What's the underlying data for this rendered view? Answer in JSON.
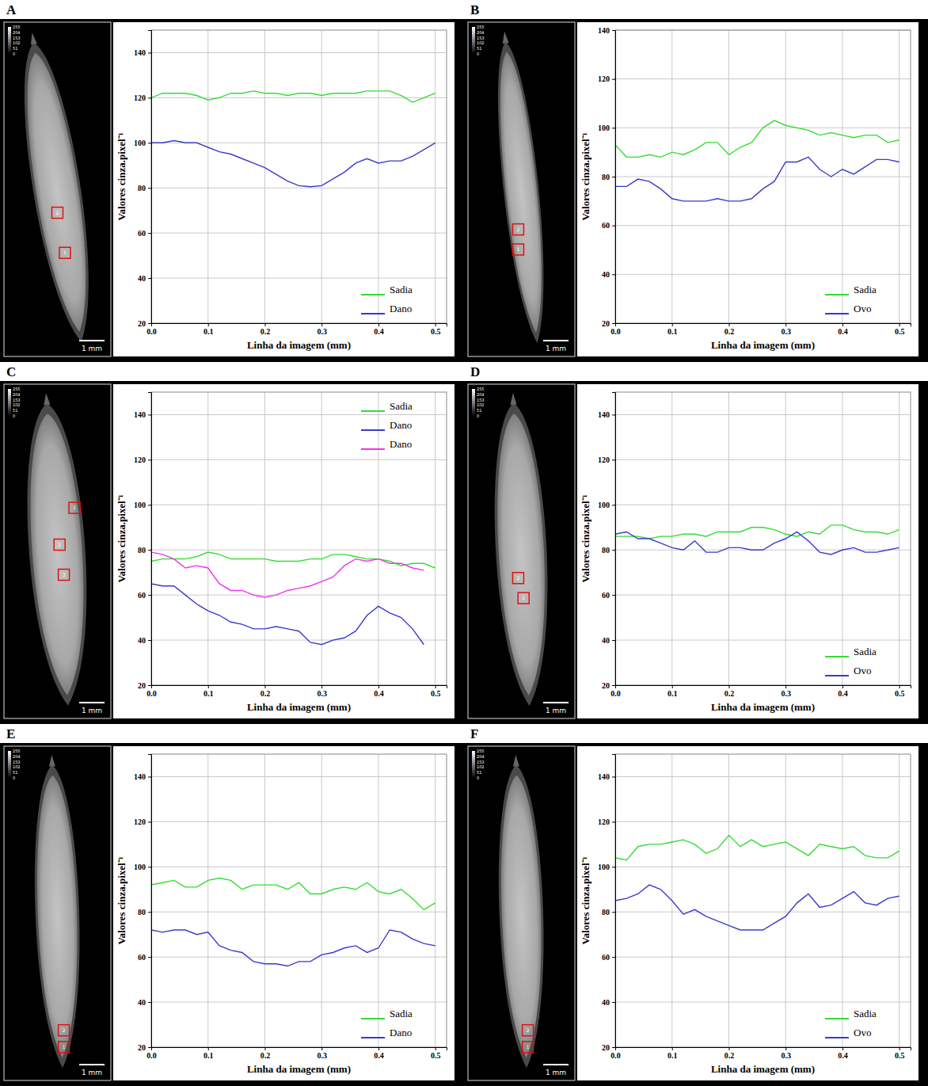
{
  "chart_data": [
    {
      "panel": "A",
      "type": "line",
      "x_label": "Linha da imagem (mm)",
      "y_label": "Valores cinza.pixel⁻¹",
      "x": [
        0,
        0.02,
        0.04,
        0.06,
        0.08,
        0.1,
        0.12,
        0.14,
        0.16,
        0.18,
        0.2,
        0.22,
        0.24,
        0.26,
        0.28,
        0.3,
        0.32,
        0.34,
        0.36,
        0.38,
        0.4,
        0.42,
        0.44,
        0.46,
        0.48,
        0.5
      ],
      "xlim": [
        0,
        0.52
      ],
      "xticks": [
        {
          "value": 0,
          "label": "0.0"
        },
        0.1,
        0.2,
        0.3,
        0.4,
        0.5
      ],
      "ylim": [
        20,
        150
      ],
      "yticks": [
        20,
        40,
        60,
        80,
        100,
        120,
        140
      ],
      "grid": true,
      "legend": "lower right",
      "series": [
        {
          "name": "Sadia",
          "color": "#33dd33",
          "values": [
            120,
            122,
            122,
            122,
            121,
            119,
            120,
            122,
            122,
            123,
            122,
            122,
            121,
            122,
            122,
            121,
            122,
            122,
            122,
            123,
            123,
            123,
            121,
            118,
            120,
            122
          ]
        },
        {
          "name": "Dano",
          "color": "#3a3acc",
          "values": [
            100,
            100,
            101,
            100,
            100,
            98,
            96,
            95,
            93,
            91,
            89,
            86,
            83,
            81,
            80.5,
            81,
            84,
            87,
            91,
            93,
            91,
            92,
            92,
            94,
            97,
            100
          ]
        }
      ],
      "image": {
        "colorbar_ticks": [
          255,
          204,
          153,
          102,
          51,
          0
        ],
        "scale_bar": "1 mm",
        "boxes": [
          "2",
          "1"
        ]
      }
    },
    {
      "panel": "B",
      "type": "line",
      "x_label": "Linha da imagem (mm)",
      "y_label": "Valores cinza.pixel⁻¹",
      "x": [
        0,
        0.02,
        0.04,
        0.06,
        0.08,
        0.1,
        0.12,
        0.14,
        0.16,
        0.18,
        0.2,
        0.22,
        0.24,
        0.26,
        0.28,
        0.3,
        0.32,
        0.34,
        0.36,
        0.38,
        0.4,
        0.42,
        0.44,
        0.46,
        0.48,
        0.5
      ],
      "xlim": [
        0,
        0.52
      ],
      "xticks": [
        {
          "value": 0,
          "label": "0.0"
        },
        0.1,
        0.2,
        0.3,
        0.4,
        0.5
      ],
      "ylim": [
        20,
        140
      ],
      "yticks": [
        20,
        40,
        60,
        80,
        100,
        120,
        140
      ],
      "grid": true,
      "legend": "lower right",
      "series": [
        {
          "name": "Sadia",
          "color": "#33dd33",
          "values": [
            93,
            88,
            88,
            89,
            88,
            90,
            89,
            91,
            94,
            94,
            89,
            92,
            94,
            100,
            103,
            101,
            100,
            99,
            97,
            98,
            97,
            96,
            97,
            97,
            94,
            95
          ]
        },
        {
          "name": "Ovo",
          "color": "#3a3acc",
          "values": [
            76,
            76,
            79,
            78,
            75,
            71,
            70,
            70,
            70,
            71,
            70,
            70,
            71,
            75,
            78,
            86,
            86,
            88,
            83,
            80,
            83,
            81,
            84,
            87,
            87,
            86
          ]
        }
      ],
      "image": {
        "colorbar_ticks": [
          255,
          204,
          153,
          102,
          51,
          0
        ],
        "scale_bar": "1 mm",
        "boxes": [
          "2",
          "1"
        ]
      }
    },
    {
      "panel": "C",
      "type": "line",
      "x_label": "Linha da imagem (mm)",
      "y_label": "Valores cinza.pixel⁻¹",
      "x": [
        0,
        0.02,
        0.04,
        0.06,
        0.08,
        0.1,
        0.12,
        0.14,
        0.16,
        0.18,
        0.2,
        0.22,
        0.24,
        0.26,
        0.28,
        0.3,
        0.32,
        0.34,
        0.36,
        0.38,
        0.4,
        0.42,
        0.44,
        0.46,
        0.48,
        0.5
      ],
      "xlim": [
        0,
        0.52
      ],
      "xticks": [
        {
          "value": 0,
          "label": "0.0"
        },
        0.1,
        0.2,
        0.3,
        0.4,
        0.5
      ],
      "ylim": [
        20,
        150
      ],
      "yticks": [
        20,
        40,
        60,
        80,
        100,
        120,
        140
      ],
      "grid": true,
      "legend": "upper right",
      "series": [
        {
          "name": "Sadia",
          "color": "#33dd33",
          "values": [
            75,
            76,
            76,
            76,
            77,
            79,
            78,
            76,
            76,
            76,
            76,
            75,
            75,
            75,
            76,
            76,
            78,
            78,
            77,
            76,
            76,
            75,
            73,
            74,
            74,
            72
          ]
        },
        {
          "name": "Dano",
          "color": "#3a3acc",
          "values": [
            65,
            64,
            64,
            60,
            56,
            53,
            51,
            48,
            47,
            45,
            45,
            46,
            45,
            44,
            39,
            38,
            40,
            41,
            44,
            51,
            55,
            52,
            50,
            45,
            38,
            null
          ]
        },
        {
          "name": "Dano",
          "color": "#ee33ee",
          "values": [
            79,
            78,
            76,
            72,
            73,
            72,
            65,
            62,
            62,
            60,
            59,
            60,
            62,
            63,
            64,
            66,
            68,
            73,
            76,
            75,
            76,
            74,
            74,
            72,
            71,
            null
          ]
        }
      ],
      "image": {
        "colorbar_ticks": [
          255,
          204,
          153,
          102,
          51,
          0
        ],
        "scale_bar": "1 mm",
        "boxes": [
          "1",
          "2",
          "3"
        ]
      }
    },
    {
      "panel": "D",
      "type": "line",
      "x_label": "Linha da imagem (mm)",
      "y_label": "Valores cinza.pixel⁻¹",
      "x": [
        0,
        0.02,
        0.04,
        0.06,
        0.08,
        0.1,
        0.12,
        0.14,
        0.16,
        0.18,
        0.2,
        0.22,
        0.24,
        0.26,
        0.28,
        0.3,
        0.32,
        0.34,
        0.36,
        0.38,
        0.4,
        0.42,
        0.44,
        0.46,
        0.48,
        0.5
      ],
      "xlim": [
        0,
        0.52
      ],
      "xticks": [
        {
          "value": 0,
          "label": "0.0"
        },
        0.1,
        0.2,
        0.3,
        0.4,
        0.5
      ],
      "ylim": [
        20,
        150
      ],
      "yticks": [
        20,
        40,
        60,
        80,
        100,
        120,
        140
      ],
      "grid": true,
      "legend": "lower right",
      "series": [
        {
          "name": "Sadia",
          "color": "#33dd33",
          "values": [
            86,
            86,
            86,
            85,
            86,
            86,
            87,
            87,
            86,
            88,
            88,
            88,
            90,
            90,
            89,
            87,
            86,
            88,
            87,
            91,
            91,
            89,
            88,
            88,
            87,
            89
          ]
        },
        {
          "name": "Ovo",
          "color": "#3a3acc",
          "values": [
            87,
            88,
            85,
            85,
            83,
            81,
            80,
            84,
            79,
            79,
            81,
            81,
            80,
            80,
            83,
            85,
            88,
            84,
            79,
            78,
            80,
            81,
            79,
            79,
            80,
            81
          ]
        }
      ],
      "image": {
        "colorbar_ticks": [
          255,
          204,
          153,
          102,
          51,
          0
        ],
        "scale_bar": "1 mm",
        "boxes": [
          "2",
          "1"
        ]
      }
    },
    {
      "panel": "E",
      "type": "line",
      "x_label": "Linha da imagem (mm)",
      "y_label": "Valores cinza.pixel⁻¹",
      "x": [
        0,
        0.02,
        0.04,
        0.06,
        0.08,
        0.1,
        0.12,
        0.14,
        0.16,
        0.18,
        0.2,
        0.22,
        0.24,
        0.26,
        0.28,
        0.3,
        0.32,
        0.34,
        0.36,
        0.38,
        0.4,
        0.42,
        0.44,
        0.46,
        0.48,
        0.5
      ],
      "xlim": [
        0,
        0.52
      ],
      "xticks": [
        {
          "value": 0,
          "label": "0.0"
        },
        0.1,
        0.2,
        0.3,
        0.4,
        0.5
      ],
      "ylim": [
        20,
        150
      ],
      "yticks": [
        20,
        40,
        60,
        80,
        100,
        120,
        140
      ],
      "grid": true,
      "legend": "lower right",
      "series": [
        {
          "name": "Sadia",
          "color": "#33dd33",
          "values": [
            92,
            93,
            94,
            91,
            91,
            94,
            95,
            94,
            90,
            92,
            92,
            92,
            90,
            93,
            88,
            88,
            90,
            91,
            90,
            93,
            89,
            88,
            90,
            86,
            81,
            84
          ]
        },
        {
          "name": "Dano",
          "color": "#3a3acc",
          "values": [
            72,
            71,
            72,
            72,
            70,
            71,
            65,
            63,
            62,
            58,
            57,
            57,
            56,
            58,
            58,
            61,
            62,
            64,
            65,
            62,
            64,
            72,
            71,
            68,
            66,
            65
          ]
        }
      ],
      "image": {
        "colorbar_ticks": [
          255,
          204,
          153,
          102,
          51,
          0
        ],
        "scale_bar": "1 mm",
        "boxes": [
          "2",
          "1"
        ]
      }
    },
    {
      "panel": "F",
      "type": "line",
      "x_label": "Linha da imagem (mm)",
      "y_label": "Valores cinza.pixel⁻¹",
      "x": [
        0,
        0.02,
        0.04,
        0.06,
        0.08,
        0.1,
        0.12,
        0.14,
        0.16,
        0.18,
        0.2,
        0.22,
        0.24,
        0.26,
        0.28,
        0.3,
        0.32,
        0.34,
        0.36,
        0.38,
        0.4,
        0.42,
        0.44,
        0.46,
        0.48,
        0.5
      ],
      "xlim": [
        0,
        0.52
      ],
      "xticks": [
        {
          "value": 0,
          "label": "0.0"
        },
        0.1,
        0.2,
        0.3,
        0.4,
        0.5
      ],
      "ylim": [
        20,
        150
      ],
      "yticks": [
        20,
        40,
        60,
        80,
        100,
        120,
        140
      ],
      "grid": true,
      "legend": "lower right",
      "series": [
        {
          "name": "Sadia",
          "color": "#33dd33",
          "values": [
            104,
            103,
            109,
            110,
            110,
            111,
            112,
            110,
            106,
            108,
            114,
            109,
            112,
            109,
            110,
            111,
            108,
            105,
            110,
            109,
            108,
            109,
            105,
            104,
            104,
            107
          ]
        },
        {
          "name": "Ovo",
          "color": "#3a3acc",
          "values": [
            85,
            86,
            88,
            92,
            90,
            85,
            79,
            81,
            78,
            76,
            74,
            72,
            72,
            72,
            75,
            78,
            84,
            88,
            82,
            83,
            86,
            89,
            84,
            83,
            86,
            87
          ]
        }
      ],
      "image": {
        "colorbar_ticks": [
          255,
          204,
          153,
          102,
          51,
          0
        ],
        "scale_bar": "1 mm",
        "boxes": [
          "2",
          "1"
        ]
      }
    }
  ]
}
